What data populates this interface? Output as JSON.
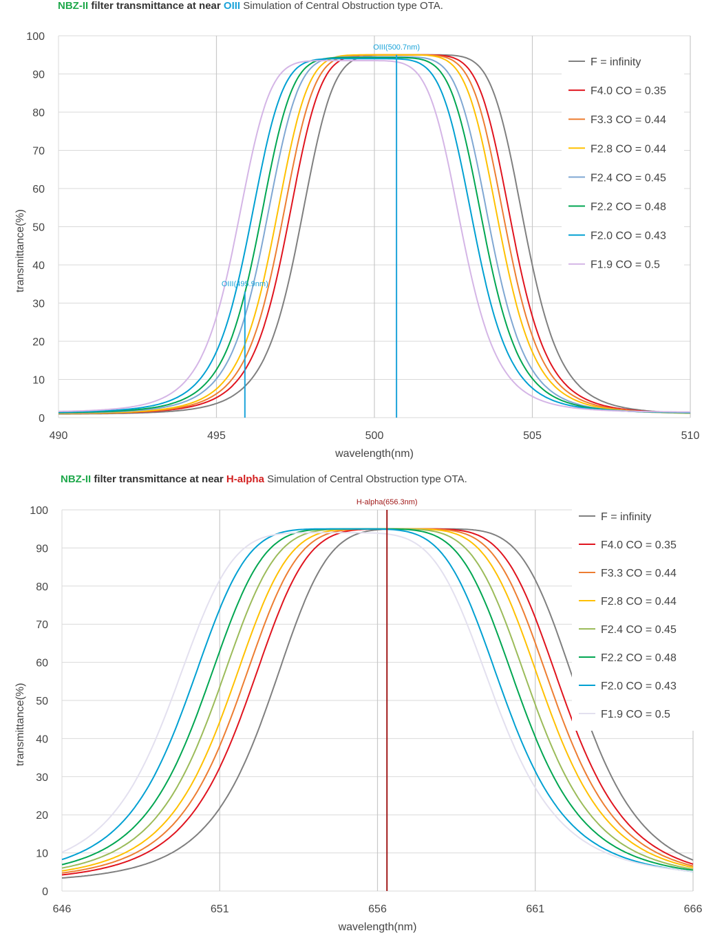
{
  "chart_data": [
    {
      "type": "line",
      "title_parts": [
        {
          "text": "NBZ-II",
          "color": "#1fa84b",
          "bold": true
        },
        {
          "text": " filter transmittance at near ",
          "color": "#333333",
          "bold": true
        },
        {
          "text": "OIII",
          "color": "#1aa3d9",
          "bold": true
        },
        {
          "text": "   Simulation of Central Obstruction type OTA.",
          "color": "#444444",
          "bold": false
        }
      ],
      "xlabel": "wavelength(nm)",
      "ylabel": "transmittance(%)",
      "xlim": [
        490,
        510
      ],
      "ylim": [
        0,
        100
      ],
      "xticks": [
        "490",
        "495",
        "500",
        "505",
        "510"
      ],
      "yticks": [
        "0",
        "10",
        "20",
        "30",
        "40",
        "50",
        "60",
        "70",
        "80",
        "90",
        "100"
      ],
      "vgrid": [
        495,
        500,
        505,
        510
      ],
      "markers": [
        {
          "x": 500.7,
          "top": 95,
          "label": "OIII(500.7nm)",
          "color": "#1aa3d9"
        },
        {
          "x": 495.9,
          "top": 33,
          "label": "OIII(495.9nm)",
          "color": "#1aa3d9"
        }
      ],
      "legend_position": "right",
      "series": [
        {
          "name": "F = infinity",
          "color": "#7f7f7f",
          "center": 501.2,
          "halfwidth": 3.6,
          "peak": 95,
          "shape": 3.2,
          "tail": 0.9
        },
        {
          "name": "F4.0 CO = 0.35",
          "color": "#e0141e",
          "center": 500.8,
          "halfwidth": 3.6,
          "peak": 95,
          "shape": 3.2,
          "tail": 1.0
        },
        {
          "name": "F3.3 CO = 0.44",
          "color": "#ed7d31",
          "center": 500.6,
          "halfwidth": 3.6,
          "peak": 95,
          "shape": 3.2,
          "tail": 1.0
        },
        {
          "name": "F2.8 CO = 0.44",
          "color": "#ffc000",
          "center": 500.4,
          "halfwidth": 3.6,
          "peak": 95,
          "shape": 3.2,
          "tail": 1.0
        },
        {
          "name": "F2.4 CO = 0.45",
          "color": "#7fa7d3",
          "center": 500.1,
          "halfwidth": 3.6,
          "peak": 94.5,
          "shape": 3.2,
          "tail": 1.1
        },
        {
          "name": "F2.2 CO = 0.48",
          "color": "#00a651",
          "center": 499.9,
          "halfwidth": 3.6,
          "peak": 94.3,
          "shape": 3.2,
          "tail": 1.2
        },
        {
          "name": "F2.0 CO = 0.43",
          "color": "#00a0d2",
          "center": 499.6,
          "halfwidth": 3.6,
          "peak": 94,
          "shape": 3.2,
          "tail": 1.3
        },
        {
          "name": "F1.9 CO = 0.5",
          "color": "#d4b5e6",
          "center": 499.2,
          "halfwidth": 3.6,
          "peak": 93.5,
          "shape": 3.2,
          "tail": 1.4
        }
      ]
    },
    {
      "type": "line",
      "title_parts": [
        {
          "text": "NBZ-II",
          "color": "#1fa84b",
          "bold": true
        },
        {
          "text": " filter transmittance at near ",
          "color": "#333333",
          "bold": true
        },
        {
          "text": "H-alpha",
          "color": "#d22020",
          "bold": true
        },
        {
          "text": "   Simulation of Central Obstruction type OTA.",
          "color": "#444444",
          "bold": false
        }
      ],
      "xlabel": "wavelength(nm)",
      "ylabel": "transmittance(%)",
      "xlim": [
        646,
        666
      ],
      "ylim": [
        0,
        100
      ],
      "xticks": [
        "646",
        "651",
        "656",
        "661",
        "666"
      ],
      "yticks": [
        "0",
        "10",
        "20",
        "30",
        "40",
        "50",
        "60",
        "70",
        "80",
        "90",
        "100"
      ],
      "vgrid": [
        651,
        656,
        661,
        666
      ],
      "markers": [
        {
          "x": 656.3,
          "top": 100,
          "label": "H-alpha(656.3nm)",
          "color": "#a01818"
        }
      ],
      "legend_position": "right",
      "series": [
        {
          "name": "F = infinity",
          "color": "#7f7f7f",
          "center": 657.5,
          "halfwidth": 5.0,
          "peak": 95,
          "shape": 2.5,
          "tail": 2.0
        },
        {
          "name": "F4.0 CO = 0.35",
          "color": "#e0141e",
          "center": 656.9,
          "halfwidth": 5.1,
          "peak": 95,
          "shape": 2.5,
          "tail": 2.2
        },
        {
          "name": "F3.3 CO = 0.44",
          "color": "#ed7d31",
          "center": 656.6,
          "halfwidth": 5.1,
          "peak": 95,
          "shape": 2.5,
          "tail": 2.4
        },
        {
          "name": "F2.8 CO = 0.44",
          "color": "#ffc000",
          "center": 656.3,
          "halfwidth": 5.1,
          "peak": 95,
          "shape": 2.5,
          "tail": 2.6
        },
        {
          "name": "F2.4 CO = 0.45",
          "color": "#9bbb59",
          "center": 655.9,
          "halfwidth": 5.1,
          "peak": 95,
          "shape": 2.5,
          "tail": 2.8
        },
        {
          "name": "F2.2 CO = 0.48",
          "color": "#00a651",
          "center": 655.5,
          "halfwidth": 5.1,
          "peak": 95,
          "shape": 2.5,
          "tail": 3.0
        },
        {
          "name": "F2.0 CO = 0.43",
          "color": "#00a0d2",
          "center": 655.0,
          "halfwidth": 5.1,
          "peak": 95,
          "shape": 2.5,
          "tail": 3.2
        },
        {
          "name": "F1.9 CO = 0.5",
          "color": "#e3e0ef",
          "center": 654.6,
          "halfwidth": 5.2,
          "peak": 94,
          "shape": 2.5,
          "tail": 3.4
        }
      ]
    }
  ]
}
